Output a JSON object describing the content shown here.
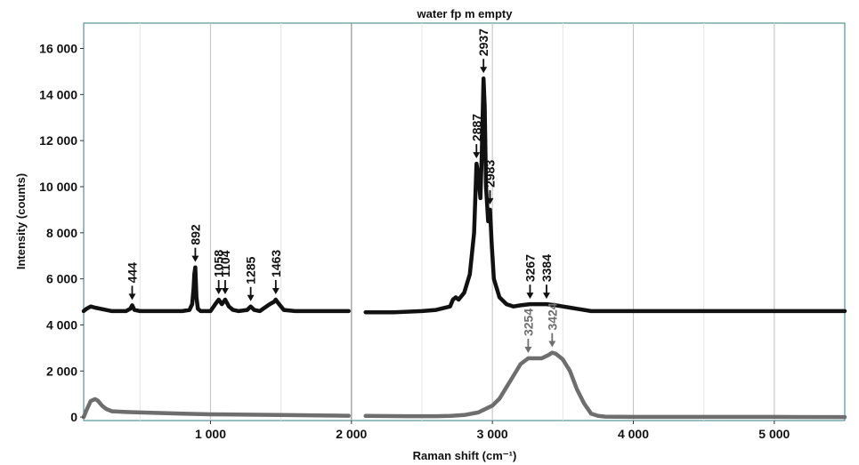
{
  "chart_data": {
    "type": "line",
    "title": "water fp m empty",
    "xlabel": "Raman shift (cm⁻¹)",
    "ylabel": "Intensity (counts)",
    "xlim": [
      100,
      5500
    ],
    "ylim": [
      -150,
      17100
    ],
    "x_ticks": [
      1000,
      2000,
      3000,
      4000,
      5000
    ],
    "x_tick_labels": [
      "1 000",
      "2 000",
      "3 000",
      "4 000",
      "5 000"
    ],
    "y_ticks": [
      0,
      2000,
      4000,
      6000,
      8000,
      10000,
      12000,
      14000,
      16000
    ],
    "y_tick_labels": [
      "0",
      "2 000",
      "4 000",
      "6 000",
      "8 000",
      "10 000",
      "12 000",
      "14 000",
      "16 000"
    ],
    "grid": true,
    "panel_split": 2000,
    "series": [
      {
        "color": "#111111",
        "x": [
          100,
          120,
          150,
          180,
          220,
          300,
          400,
          430,
          444,
          460,
          500,
          600,
          700,
          800,
          850,
          870,
          880,
          885,
          892,
          900,
          910,
          930,
          1000,
          1040,
          1058,
          1080,
          1104,
          1130,
          1160,
          1200,
          1260,
          1285,
          1310,
          1350,
          1420,
          1450,
          1463,
          1480,
          1520,
          1600,
          1800,
          1980,
          2100,
          2300,
          2500,
          2600,
          2700,
          2720,
          2740,
          2760,
          2800,
          2840,
          2870,
          2887,
          2900,
          2915,
          2925,
          2937,
          2945,
          2955,
          2970,
          2983,
          2995,
          3010,
          3050,
          3100,
          3150,
          3200,
          3267,
          3300,
          3384,
          3450,
          3500,
          3550,
          3600,
          3700,
          4000,
          4500,
          4900,
          5200,
          5500
        ],
        "y": [
          4600,
          4700,
          4800,
          4750,
          4700,
          4600,
          4600,
          4700,
          4850,
          4650,
          4600,
          4600,
          4600,
          4600,
          4650,
          4900,
          5600,
          6200,
          6500,
          5200,
          4700,
          4600,
          4600,
          4950,
          5100,
          4900,
          5100,
          4800,
          4650,
          4600,
          4650,
          4800,
          4650,
          4600,
          4900,
          5000,
          5100,
          4950,
          4650,
          4600,
          4600,
          4600,
          4550,
          4550,
          4600,
          4650,
          4800,
          5100,
          5200,
          5100,
          5400,
          6200,
          8000,
          11000,
          10500,
          9500,
          11500,
          14700,
          13500,
          10000,
          8500,
          9000,
          7500,
          6000,
          5200,
          4900,
          4800,
          4850,
          4900,
          4900,
          4900,
          4850,
          4800,
          4750,
          4700,
          4600,
          4600,
          4600,
          4600,
          4600,
          4600
        ]
      },
      {
        "color": "#6e6e6e",
        "x": [
          100,
          120,
          150,
          180,
          200,
          230,
          260,
          300,
          400,
          500,
          800,
          1000,
          1500,
          1980,
          2100,
          2400,
          2600,
          2700,
          2800,
          2900,
          3000,
          3050,
          3100,
          3150,
          3200,
          3254,
          3300,
          3350,
          3400,
          3424,
          3450,
          3500,
          3550,
          3600,
          3650,
          3700,
          3750,
          3800,
          4000,
          4500,
          5000,
          5500
        ],
        "y": [
          0,
          300,
          700,
          780,
          720,
          500,
          350,
          250,
          220,
          200,
          150,
          120,
          90,
          60,
          50,
          40,
          40,
          50,
          90,
          200,
          500,
          800,
          1300,
          1800,
          2300,
          2550,
          2550,
          2550,
          2700,
          2800,
          2750,
          2500,
          2000,
          1200,
          600,
          150,
          50,
          20,
          10,
          10,
          10,
          0
        ]
      }
    ],
    "annotations": [
      {
        "label": "444",
        "x": 444,
        "y": 4850,
        "series": 0
      },
      {
        "label": "892",
        "x": 892,
        "y": 6500,
        "series": 0
      },
      {
        "label": "1058",
        "x": 1058,
        "y": 5100,
        "series": 0
      },
      {
        "label": "1104",
        "x": 1104,
        "y": 5100,
        "series": 0
      },
      {
        "label": "1285",
        "x": 1285,
        "y": 4800,
        "series": 0
      },
      {
        "label": "1463",
        "x": 1463,
        "y": 5100,
        "series": 0
      },
      {
        "label": "2887",
        "x": 2887,
        "y": 11000,
        "series": 0
      },
      {
        "label": "2937",
        "x": 2937,
        "y": 14700,
        "series": 0
      },
      {
        "label": "2983",
        "x": 2983,
        "y": 9000,
        "series": 0
      },
      {
        "label": "3267",
        "x": 3267,
        "y": 4900,
        "series": 0
      },
      {
        "label": "3384",
        "x": 3384,
        "y": 4900,
        "series": 0
      },
      {
        "label": "3254",
        "x": 3254,
        "y": 2550,
        "series": 1
      },
      {
        "label": "3424",
        "x": 3424,
        "y": 2800,
        "series": 1
      }
    ]
  }
}
